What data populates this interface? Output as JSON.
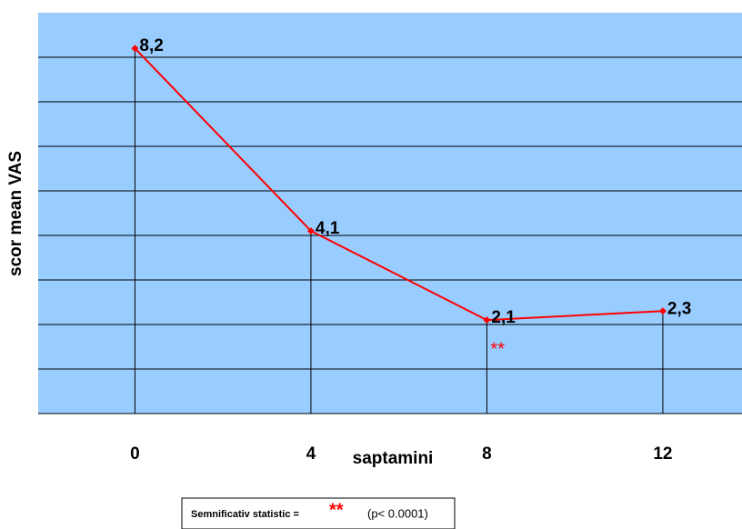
{
  "chart_data": {
    "type": "line",
    "y_label": "scor mean VAS",
    "x_label": "saptamini",
    "x": [
      0,
      4,
      8,
      12
    ],
    "series": [
      {
        "color": "#ff0000",
        "values": [
          8.2,
          4.1,
          2.1,
          2.3
        ],
        "value_labels": [
          "8,2",
          "4,1",
          "2,1",
          "2,3"
        ]
      }
    ],
    "xlim": [
      -2.2,
      13.8
    ],
    "xticks": [
      0,
      4,
      8,
      12
    ],
    "ylim": [
      0,
      9
    ],
    "ygrid": [
      0,
      1,
      2,
      3,
      4,
      5,
      6,
      7,
      8
    ],
    "background": "#99ccff",
    "annotation": "**",
    "legend": {
      "text": "Semnificativ statistic =",
      "symbol": "**",
      "note": "(p< 0.0001)"
    }
  }
}
